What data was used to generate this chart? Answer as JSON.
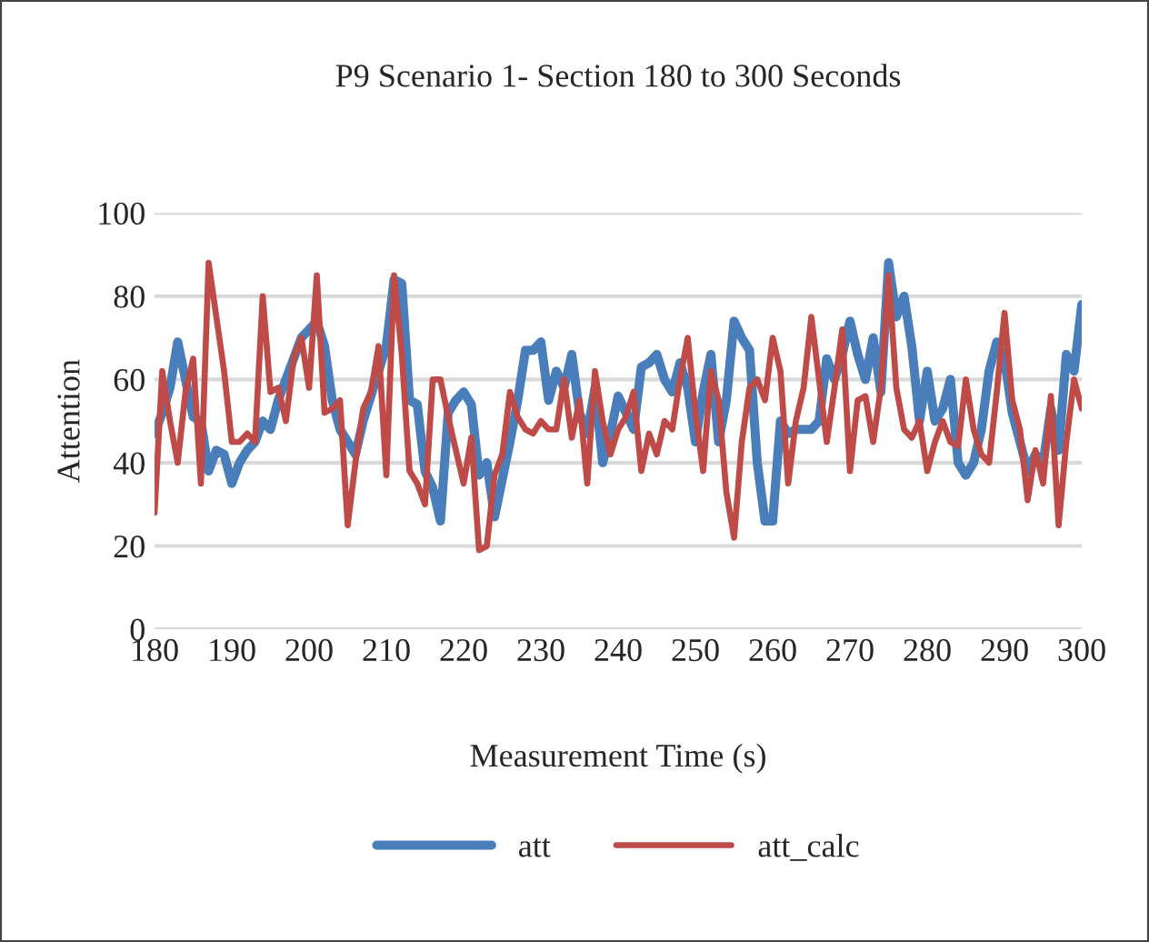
{
  "chart_data": {
    "type": "line",
    "title": "P9 Scenario 1- Section 180 to 300 Seconds",
    "xlabel": "Measurement Time (s)",
    "ylabel": "Attention",
    "x": [
      180,
      181,
      182,
      183,
      184,
      185,
      186,
      187,
      188,
      189,
      190,
      191,
      192,
      193,
      194,
      195,
      196,
      197,
      198,
      199,
      200,
      201,
      202,
      203,
      204,
      205,
      206,
      207,
      208,
      209,
      210,
      211,
      212,
      213,
      214,
      215,
      216,
      217,
      218,
      219,
      220,
      221,
      222,
      223,
      224,
      225,
      226,
      227,
      228,
      229,
      230,
      231,
      232,
      233,
      234,
      235,
      236,
      237,
      238,
      239,
      240,
      241,
      242,
      243,
      244,
      245,
      246,
      247,
      248,
      249,
      250,
      251,
      252,
      253,
      254,
      255,
      256,
      257,
      258,
      259,
      260,
      261,
      262,
      263,
      264,
      265,
      266,
      267,
      268,
      269,
      270,
      271,
      272,
      273,
      274,
      275,
      276,
      277,
      278,
      279,
      280,
      281,
      282,
      283,
      284,
      285,
      286,
      287,
      288,
      289,
      290,
      291,
      292,
      293,
      294,
      295,
      296,
      297,
      298,
      299,
      300
    ],
    "series": [
      {
        "name": "att",
        "color": "#4a7ebb",
        "values": [
          47,
          52,
          58,
          69,
          60,
          51,
          50,
          38,
          43,
          42,
          35,
          40,
          43,
          45,
          50,
          48,
          55,
          60,
          65,
          70,
          72,
          74,
          68,
          55,
          48,
          45,
          42,
          50,
          56,
          62,
          68,
          84,
          83,
          55,
          54,
          38,
          34,
          26,
          52,
          55,
          57,
          54,
          37,
          40,
          27,
          36,
          45,
          55,
          67,
          67,
          69,
          55,
          62,
          58,
          66,
          52,
          47,
          58,
          40,
          47,
          56,
          52,
          48,
          63,
          64,
          66,
          60,
          57,
          64,
          58,
          45,
          57,
          66,
          45,
          55,
          74,
          70,
          67,
          40,
          26,
          26,
          50,
          47,
          48,
          48,
          48,
          50,
          65,
          60,
          66,
          74,
          66,
          60,
          70,
          57,
          88,
          75,
          80,
          68,
          50,
          62,
          50,
          53,
          60,
          40,
          37,
          40,
          48,
          62,
          69,
          65,
          52,
          45,
          38,
          42,
          40,
          53,
          43,
          66,
          62,
          78
        ]
      },
      {
        "name": "att_calc",
        "color": "#be4b48",
        "values": [
          28,
          62,
          50,
          40,
          57,
          65,
          35,
          88,
          75,
          62,
          45,
          45,
          47,
          45,
          80,
          57,
          58,
          50,
          65,
          70,
          58,
          85,
          52,
          53,
          55,
          25,
          40,
          53,
          57,
          68,
          37,
          85,
          66,
          38,
          35,
          30,
          60,
          60,
          51,
          43,
          35,
          46,
          19,
          20,
          37,
          42,
          57,
          51,
          48,
          47,
          50,
          48,
          48,
          60,
          46,
          55,
          35,
          62,
          50,
          42,
          48,
          51,
          57,
          38,
          47,
          42,
          50,
          48,
          60,
          70,
          52,
          38,
          62,
          55,
          33,
          22,
          45,
          58,
          60,
          55,
          70,
          62,
          35,
          50,
          58,
          75,
          60,
          45,
          58,
          72,
          38,
          55,
          56,
          45,
          58,
          85,
          58,
          48,
          46,
          50,
          38,
          45,
          50,
          45,
          44,
          60,
          48,
          42,
          40,
          57,
          76,
          55,
          48,
          31,
          43,
          35,
          56,
          25,
          45,
          60,
          53
        ]
      }
    ],
    "xlim": [
      180,
      300
    ],
    "xticks": [
      180,
      190,
      200,
      210,
      220,
      230,
      240,
      250,
      260,
      270,
      280,
      290,
      300
    ],
    "ylim": [
      0,
      100
    ],
    "yticks": [
      0,
      20,
      40,
      60,
      80,
      100
    ],
    "grid": "y",
    "legend": "bottom",
    "marker": "none",
    "line_style": "solid"
  }
}
